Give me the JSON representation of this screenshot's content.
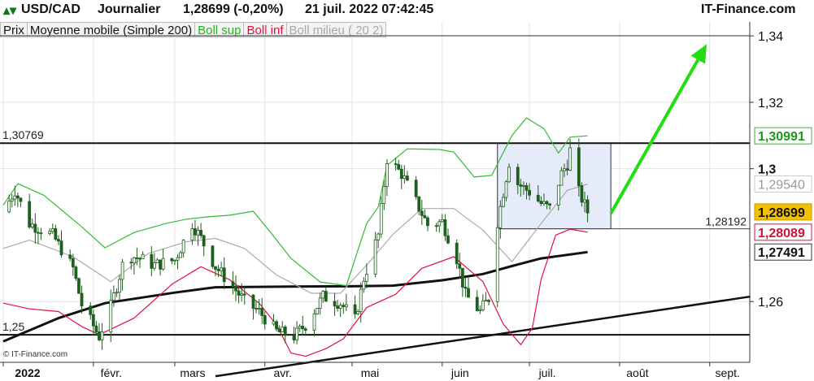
{
  "header": {
    "symbol": "USD/CAD",
    "period": "Journalier",
    "quote": "1,28699 (-0,20%)",
    "datetime": "21 juil. 2022 07:42:45",
    "site": "IT-Finance.com"
  },
  "legend": [
    {
      "label": "Prix",
      "color": "#111111"
    },
    {
      "label": "Moyenne mobile (Simple 200)",
      "color": "#111111"
    },
    {
      "label": "Boll sup",
      "color": "#1fb61f"
    },
    {
      "label": "Boll inf",
      "color": "#e0103c"
    },
    {
      "label": "Boll milieu ( 20 2)",
      "color": "#a8a8a8"
    }
  ],
  "watermark": "© IT-Finance.com",
  "colors": {
    "candle": "#1f5f1f",
    "boll_sup": "#33bb33",
    "boll_inf": "#e0103c",
    "boll_mid": "#aaaaaa",
    "sma200": "#111111",
    "arrow": "#22dd11",
    "box_fill": "#e6ebfa",
    "box_stroke": "#333333",
    "last_price_bg": "#f2c200"
  },
  "chart_data": {
    "type": "candlestick",
    "x_tick_labels": [
      "2022",
      "févr.",
      "mars",
      "avr.",
      "mai",
      "juin",
      "juil.",
      "août",
      "sept."
    ],
    "y_tick_labels": [
      "1,34",
      "1,32",
      "1,3",
      "1,26"
    ],
    "y_ticks": [
      1.34,
      1.32,
      1.3,
      1.26
    ],
    "ylim": [
      1.2417,
      1.3442
    ],
    "horizontal_lines": [
      {
        "label": "1,30769",
        "value": 1.30769
      },
      {
        "label": "1,25",
        "value": 1.25
      }
    ],
    "right_value_tags": [
      {
        "label": "1,30991",
        "value": 1.30991,
        "series": "Boll sup"
      },
      {
        "label": "1,29540",
        "value": 1.2954,
        "series": "Boll milieu"
      },
      {
        "label": "1,28699",
        "value": 1.28699,
        "series": "Prix"
      },
      {
        "label": "1,28089",
        "value": 1.28089,
        "series": "Boll inf"
      },
      {
        "label": "1,27491",
        "value": 1.27491,
        "series": "Moyenne mobile (Simple 200)"
      }
    ],
    "box": {
      "label": "1,28192",
      "date_start": "2022-06-20",
      "date_end": "2022-07-29",
      "low": 1.28192,
      "high": 1.30769
    },
    "trendline": [
      {
        "date": "2022-03-15",
        "value": 1.2375
      },
      {
        "date": "2022-09-15",
        "value": 1.2615
      }
    ],
    "arrow": [
      {
        "date": "2022-07-29",
        "value": 1.2865
      },
      {
        "date": "2022-08-31",
        "value": 1.3375
      }
    ],
    "series": [
      {
        "name": "Moyenne mobile (Simple 200)",
        "points": [
          [
            "2022-01-01",
            1.248
          ],
          [
            "2022-01-20",
            1.255
          ],
          [
            "2022-02-05",
            1.2595
          ],
          [
            "2022-03-01",
            1.2627
          ],
          [
            "2022-03-15",
            1.2643
          ],
          [
            "2022-04-10",
            1.2645
          ],
          [
            "2022-05-01",
            1.2646
          ],
          [
            "2022-05-15",
            1.2648
          ],
          [
            "2022-06-01",
            1.2664
          ],
          [
            "2022-06-15",
            1.2683
          ],
          [
            "2022-06-25",
            1.2707
          ],
          [
            "2022-07-05",
            1.273
          ],
          [
            "2022-07-21",
            1.2749
          ]
        ]
      },
      {
        "name": "Boll sup",
        "points": [
          [
            "2022-01-01",
            1.289
          ],
          [
            "2022-01-06",
            1.2955
          ],
          [
            "2022-01-15",
            1.292
          ],
          [
            "2022-01-28",
            1.2825
          ],
          [
            "2022-02-05",
            1.2762
          ],
          [
            "2022-02-15",
            1.2808
          ],
          [
            "2022-02-26",
            1.2835
          ],
          [
            "2022-03-05",
            1.2848
          ],
          [
            "2022-03-12",
            1.2855
          ],
          [
            "2022-03-20",
            1.286
          ],
          [
            "2022-03-28",
            1.2872
          ],
          [
            "2022-04-03",
            1.2808
          ],
          [
            "2022-04-10",
            1.273
          ],
          [
            "2022-04-20",
            1.2659
          ],
          [
            "2022-04-29",
            1.2648
          ],
          [
            "2022-05-06",
            1.2835
          ],
          [
            "2022-05-10",
            1.2885
          ],
          [
            "2022-05-13",
            1.301
          ],
          [
            "2022-05-20",
            1.306
          ],
          [
            "2022-05-31",
            1.3058
          ],
          [
            "2022-06-05",
            1.305
          ],
          [
            "2022-06-12",
            1.2975
          ],
          [
            "2022-06-18",
            1.298
          ],
          [
            "2022-06-25",
            1.31
          ],
          [
            "2022-06-30",
            1.3153
          ],
          [
            "2022-07-06",
            1.312
          ],
          [
            "2022-07-11",
            1.3047
          ],
          [
            "2022-07-15",
            1.3095
          ],
          [
            "2022-07-21",
            1.3099
          ]
        ]
      },
      {
        "name": "Boll milieu",
        "points": [
          [
            "2022-01-01",
            1.276
          ],
          [
            "2022-01-10",
            1.2785
          ],
          [
            "2022-01-25",
            1.2735
          ],
          [
            "2022-02-07",
            1.266
          ],
          [
            "2022-02-20",
            1.2745
          ],
          [
            "2022-03-05",
            1.278
          ],
          [
            "2022-03-15",
            1.279
          ],
          [
            "2022-03-25",
            1.276
          ],
          [
            "2022-04-05",
            1.268
          ],
          [
            "2022-04-17",
            1.2625
          ],
          [
            "2022-04-27",
            1.2625
          ],
          [
            "2022-05-07",
            1.272
          ],
          [
            "2022-05-15",
            1.2802
          ],
          [
            "2022-05-25",
            1.288
          ],
          [
            "2022-06-05",
            1.288
          ],
          [
            "2022-06-15",
            1.2815
          ],
          [
            "2022-06-25",
            1.272
          ],
          [
            "2022-07-05",
            1.2835
          ],
          [
            "2022-07-14",
            1.2935
          ],
          [
            "2022-07-21",
            1.2954
          ]
        ]
      },
      {
        "name": "Boll inf",
        "points": [
          [
            "2022-01-01",
            1.2595
          ],
          [
            "2022-01-10",
            1.2578
          ],
          [
            "2022-01-20",
            1.257
          ],
          [
            "2022-01-28",
            1.2525
          ],
          [
            "2022-02-03",
            1.25
          ],
          [
            "2022-02-15",
            1.255
          ],
          [
            "2022-02-28",
            1.2652
          ],
          [
            "2022-03-10",
            1.2705
          ],
          [
            "2022-03-20",
            1.2665
          ],
          [
            "2022-03-30",
            1.2595
          ],
          [
            "2022-04-05",
            1.253
          ],
          [
            "2022-04-10",
            1.2445
          ],
          [
            "2022-04-15",
            1.2435
          ],
          [
            "2022-04-22",
            1.2458
          ],
          [
            "2022-04-28",
            1.2488
          ],
          [
            "2022-05-06",
            1.2582
          ],
          [
            "2022-05-16",
            1.2622
          ],
          [
            "2022-05-25",
            1.27
          ],
          [
            "2022-06-05",
            1.2735
          ],
          [
            "2022-06-15",
            1.266
          ],
          [
            "2022-06-22",
            1.2532
          ],
          [
            "2022-06-28",
            1.247
          ],
          [
            "2022-07-02",
            1.252
          ],
          [
            "2022-07-05",
            1.2667
          ],
          [
            "2022-07-10",
            1.28
          ],
          [
            "2022-07-15",
            1.2818
          ],
          [
            "2022-07-21",
            1.2809
          ]
        ]
      },
      {
        "name": "Prix",
        "points": [
          [
            "2022-01-01",
            1.287
          ],
          [
            "2022-01-05",
            1.2935
          ],
          [
            "2022-01-10",
            1.2835
          ],
          [
            "2022-01-18",
            1.28
          ],
          [
            "2022-01-25",
            1.27
          ],
          [
            "2022-01-28",
            1.259
          ],
          [
            "2022-02-03",
            1.2495
          ],
          [
            "2022-02-07",
            1.2585
          ],
          [
            "2022-02-12",
            1.274
          ],
          [
            "2022-02-17",
            1.273
          ],
          [
            "2022-02-22",
            1.271
          ],
          [
            "2022-03-01",
            1.2725
          ],
          [
            "2022-03-07",
            1.2835
          ],
          [
            "2022-03-10",
            1.279
          ],
          [
            "2022-03-15",
            1.2705
          ],
          [
            "2022-03-21",
            1.2645
          ],
          [
            "2022-03-25",
            1.26
          ],
          [
            "2022-03-30",
            1.257
          ],
          [
            "2022-04-05",
            1.251
          ],
          [
            "2022-04-11",
            1.2495
          ],
          [
            "2022-04-15",
            1.253
          ],
          [
            "2022-04-21",
            1.2615
          ],
          [
            "2022-04-27",
            1.2595
          ],
          [
            "2022-05-02",
            1.2545
          ],
          [
            "2022-05-05",
            1.267
          ],
          [
            "2022-05-10",
            1.28
          ],
          [
            "2022-05-13",
            1.303
          ],
          [
            "2022-05-18",
            1.2985
          ],
          [
            "2022-05-23",
            1.29
          ],
          [
            "2022-05-27",
            1.283
          ],
          [
            "2022-06-01",
            1.284
          ],
          [
            "2022-06-06",
            1.273
          ],
          [
            "2022-06-09",
            1.262
          ],
          [
            "2022-06-14",
            1.257
          ],
          [
            "2022-06-17",
            1.261
          ],
          [
            "2022-06-20",
            1.284
          ],
          [
            "2022-06-24",
            1.302
          ],
          [
            "2022-06-27",
            1.2955
          ],
          [
            "2022-07-01",
            1.293
          ],
          [
            "2022-07-05",
            1.2895
          ],
          [
            "2022-07-08",
            1.288
          ],
          [
            "2022-07-12",
            1.2985
          ],
          [
            "2022-07-14",
            1.3015
          ],
          [
            "2022-07-16",
            1.3095
          ],
          [
            "2022-07-18",
            1.293
          ],
          [
            "2022-07-21",
            1.287
          ]
        ]
      }
    ]
  }
}
